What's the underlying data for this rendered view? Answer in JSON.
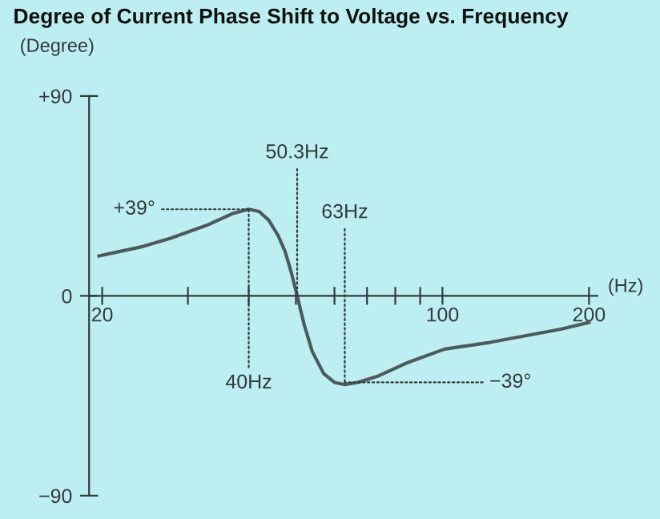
{
  "chart_data": {
    "type": "line",
    "title": "Degree of Current Phase Shift to Voltage vs. Frequency",
    "ylabel": "(Degree)",
    "xlabel": "(Hz)",
    "log": "x",
    "x": [
      19.7,
      24,
      27.7,
      33,
      37,
      40,
      42,
      44,
      46,
      47.5,
      49,
      50.3,
      52,
      54,
      57,
      60,
      63,
      67,
      74,
      85,
      101,
      125,
      148,
      175,
      200
    ],
    "series": [
      {
        "color": "#4d5a5c",
        "values": [
          18,
          22,
          26,
          32,
          37,
          39,
          38,
          34,
          27,
          20,
          10,
          0,
          -13,
          -25,
          -35,
          -39,
          -40,
          -39,
          -36,
          -30,
          -24,
          -21,
          -18,
          -15,
          -12
        ]
      }
    ],
    "xlim": [
      18.8,
      208
    ],
    "ylim": [
      -90,
      90
    ],
    "xticks": [
      20,
      {
        "value": 30,
        "label": null
      },
      {
        "value": 40,
        "label": null
      },
      {
        "value": 50,
        "label": null
      },
      {
        "value": 60,
        "label": null
      },
      {
        "value": 70,
        "label": null
      },
      {
        "value": 80,
        "label": null
      },
      {
        "value": 90,
        "label": null
      },
      100,
      200
    ],
    "yticks": [
      {
        "value": 90,
        "label": "+90"
      },
      0,
      {
        "value": -90,
        "label": "−90"
      }
    ],
    "annotations": [
      {
        "text": "+39°",
        "x": 40,
        "y": 39
      },
      {
        "text": "50.3Hz",
        "x": 50.3,
        "y": 0
      },
      {
        "text": "63Hz",
        "x": 63,
        "y": -39
      },
      {
        "text": "40Hz",
        "x": 40,
        "y": 39
      },
      {
        "text": "−39°",
        "x": 63,
        "y": -39
      }
    ],
    "grid": false,
    "legend": false,
    "marker": "none",
    "line_style": "solid"
  }
}
